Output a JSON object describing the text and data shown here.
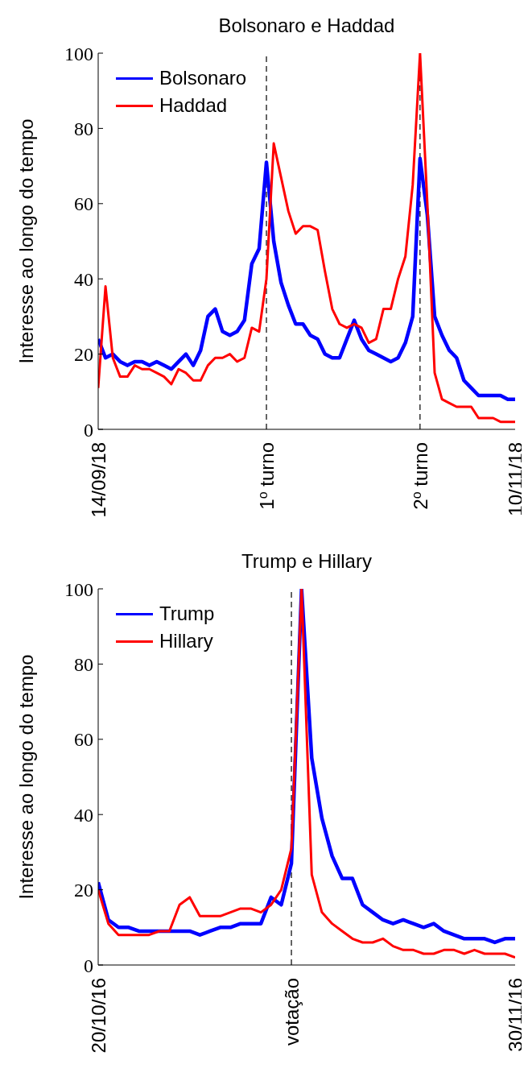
{
  "chart_data": [
    {
      "type": "line",
      "title": "Bolsonaro e Haddad",
      "ylabel": "Interesse ao longo do tempo",
      "x": [
        "2018-09-14",
        "2018-09-15",
        "2018-09-16",
        "2018-09-17",
        "2018-09-18",
        "2018-09-19",
        "2018-09-20",
        "2018-09-21",
        "2018-09-22",
        "2018-09-23",
        "2018-09-24",
        "2018-09-25",
        "2018-09-26",
        "2018-09-27",
        "2018-09-28",
        "2018-09-29",
        "2018-09-30",
        "2018-10-01",
        "2018-10-02",
        "2018-10-03",
        "2018-10-04",
        "2018-10-05",
        "2018-10-06",
        "2018-10-07",
        "2018-10-08",
        "2018-10-09",
        "2018-10-10",
        "2018-10-11",
        "2018-10-12",
        "2018-10-13",
        "2018-10-14",
        "2018-10-15",
        "2018-10-16",
        "2018-10-17",
        "2018-10-18",
        "2018-10-19",
        "2018-10-20",
        "2018-10-21",
        "2018-10-22",
        "2018-10-23",
        "2018-10-24",
        "2018-10-25",
        "2018-10-26",
        "2018-10-27",
        "2018-10-28",
        "2018-10-29",
        "2018-10-30",
        "2018-10-31",
        "2018-11-01",
        "2018-11-02",
        "2018-11-03",
        "2018-11-04",
        "2018-11-05",
        "2018-11-06",
        "2018-11-07",
        "2018-11-08",
        "2018-11-09",
        "2018-11-10"
      ],
      "series": [
        {
          "name": "Bolsonaro",
          "color": "#0000ff",
          "values": [
            24,
            19,
            20,
            18,
            17,
            18,
            18,
            17,
            18,
            17,
            16,
            18,
            20,
            17,
            21,
            30,
            32,
            26,
            25,
            26,
            29,
            44,
            48,
            71,
            50,
            39,
            33,
            28,
            28,
            25,
            24,
            20,
            19,
            19,
            24,
            29,
            24,
            21,
            20,
            19,
            18,
            19,
            23,
            30,
            72,
            57,
            30,
            25,
            21,
            19,
            13,
            11,
            9,
            9,
            9,
            9,
            8,
            8
          ]
        },
        {
          "name": "Haddad",
          "color": "#ff0000",
          "values": [
            11,
            38,
            19,
            14,
            14,
            17,
            16,
            16,
            15,
            14,
            12,
            16,
            15,
            13,
            13,
            17,
            19,
            19,
            20,
            18,
            19,
            27,
            26,
            40,
            76,
            67,
            58,
            52,
            54,
            54,
            53,
            42,
            32,
            28,
            27,
            28,
            27,
            23,
            24,
            32,
            32,
            40,
            46,
            65,
            100,
            60,
            15,
            8,
            7,
            6,
            6,
            6,
            3,
            3,
            3,
            2,
            2,
            2
          ]
        }
      ],
      "xlim": [
        "2018-09-14",
        "2018-11-10"
      ],
      "xticks": [
        {
          "value": "2018-09-14",
          "label": "14/09/18"
        },
        {
          "value": "2018-10-07",
          "label": "1$^{o}$ turno"
        },
        {
          "value": "2018-10-28",
          "label": "2$^{o}$ turno"
        },
        {
          "value": "2018-11-10",
          "label": "10/11/18"
        }
      ],
      "ylim": [
        0,
        100
      ],
      "yticks": [
        0,
        20,
        40,
        60,
        80,
        100
      ],
      "ref_lines": [
        {
          "axis": "x",
          "value": "2018-10-07",
          "color": "#000000",
          "line_style": "dashed"
        },
        {
          "axis": "x",
          "value": "2018-10-28",
          "color": "#000000",
          "line_style": "dashed"
        }
      ],
      "legend": "top left"
    },
    {
      "type": "line",
      "title": "Trump e Hillary",
      "ylabel": "Interesse ao longo do tempo",
      "x": [
        "2016-10-20",
        "2016-10-21",
        "2016-10-22",
        "2016-10-23",
        "2016-10-24",
        "2016-10-25",
        "2016-10-26",
        "2016-10-27",
        "2016-10-28",
        "2016-10-29",
        "2016-10-30",
        "2016-10-31",
        "2016-11-01",
        "2016-11-02",
        "2016-11-03",
        "2016-11-04",
        "2016-11-05",
        "2016-11-06",
        "2016-11-07",
        "2016-11-08",
        "2016-11-09",
        "2016-11-10",
        "2016-11-11",
        "2016-11-12",
        "2016-11-13",
        "2016-11-14",
        "2016-11-15",
        "2016-11-16",
        "2016-11-17",
        "2016-11-18",
        "2016-11-19",
        "2016-11-20",
        "2016-11-21",
        "2016-11-22",
        "2016-11-23",
        "2016-11-24",
        "2016-11-25",
        "2016-11-26",
        "2016-11-27",
        "2016-11-28",
        "2016-11-29",
        "2016-11-30"
      ],
      "series": [
        {
          "name": "Trump",
          "color": "#0000ff",
          "values": [
            22,
            12,
            10,
            10,
            9,
            9,
            9,
            9,
            9,
            9,
            8,
            9,
            10,
            10,
            11,
            11,
            11,
            18,
            16,
            27,
            100,
            55,
            39,
            29,
            23,
            23,
            16,
            14,
            12,
            11,
            12,
            11,
            10,
            11,
            9,
            8,
            7,
            7,
            7,
            6,
            7,
            7
          ]
        },
        {
          "name": "Hillary",
          "color": "#ff0000",
          "values": [
            20,
            11,
            8,
            8,
            8,
            8,
            9,
            9,
            16,
            18,
            13,
            13,
            13,
            14,
            15,
            15,
            14,
            16,
            20,
            31,
            100,
            24,
            14,
            11,
            9,
            7,
            6,
            6,
            7,
            5,
            4,
            4,
            3,
            3,
            4,
            4,
            3,
            4,
            3,
            3,
            3,
            2
          ]
        }
      ],
      "xlim": [
        "2016-10-20",
        "2016-11-30"
      ],
      "xticks": [
        {
          "value": "2016-10-20",
          "label": "20/10/16"
        },
        {
          "value": "2016-11-08",
          "label": "votação"
        },
        {
          "value": "2016-11-30",
          "label": "30/11/16"
        }
      ],
      "ylim": [
        0,
        100
      ],
      "yticks": [
        0,
        20,
        40,
        60,
        80,
        100
      ],
      "ref_lines": [
        {
          "axis": "x",
          "value": "2016-11-08",
          "color": "#000000",
          "line_style": "dashed"
        }
      ],
      "legend": "top left"
    }
  ]
}
